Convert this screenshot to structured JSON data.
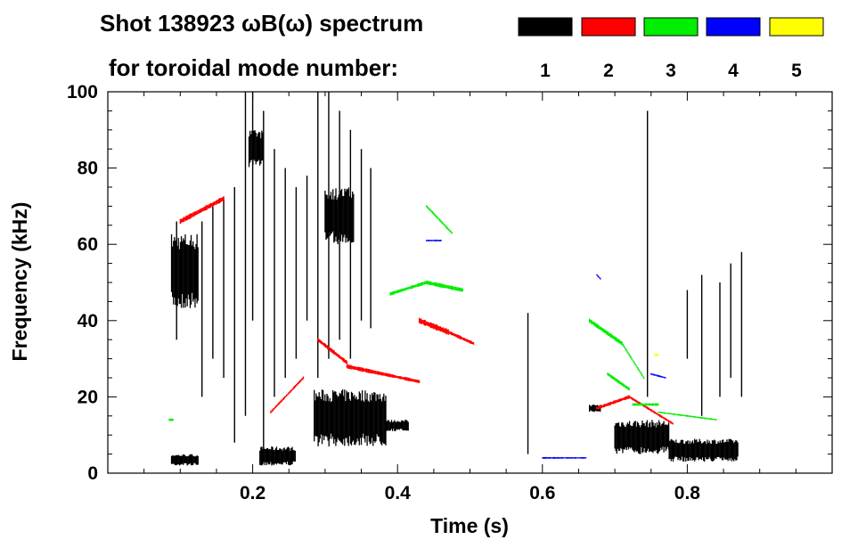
{
  "chart_data": {
    "type": "heatmap",
    "title_line1": "Shot 138923 ωB(ω) spectrum",
    "title_line2": "for toroidal mode number:",
    "xlabel": "Time (s)",
    "ylabel": "Frequency (kHz)",
    "xlim": [
      0.0,
      1.0
    ],
    "ylim": [
      0,
      100
    ],
    "xticks": [
      0.2,
      0.4,
      0.6,
      0.8
    ],
    "xtick_labels": [
      "0.2",
      "0.4",
      "0.6",
      "0.8"
    ],
    "yticks": [
      0,
      20,
      40,
      60,
      80,
      100
    ],
    "ytick_labels": [
      "0",
      "20",
      "40",
      "60",
      "80",
      "100"
    ],
    "legend": [
      {
        "n": "1",
        "color": "#000000"
      },
      {
        "n": "2",
        "color": "#ff0000"
      },
      {
        "n": "3",
        "color": "#00ee00"
      },
      {
        "n": "4",
        "color": "#0000ff"
      },
      {
        "n": "5",
        "color": "#ffff00"
      }
    ],
    "blobs": [
      {
        "n": 1,
        "t0": 0.088,
        "t1": 0.125,
        "f0": 43,
        "f1": 63
      },
      {
        "n": 1,
        "t0": 0.088,
        "t1": 0.125,
        "f0": 2,
        "f1": 5
      },
      {
        "n": 1,
        "t0": 0.195,
        "t1": 0.215,
        "f0": 80,
        "f1": 90
      },
      {
        "n": 1,
        "t0": 0.21,
        "t1": 0.26,
        "f0": 2,
        "f1": 7
      },
      {
        "n": 1,
        "t0": 0.285,
        "t1": 0.385,
        "f0": 7,
        "f1": 22
      },
      {
        "n": 1,
        "t0": 0.385,
        "t1": 0.415,
        "f0": 11,
        "f1": 14
      },
      {
        "n": 1,
        "t0": 0.3,
        "t1": 0.34,
        "f0": 60,
        "f1": 75
      },
      {
        "n": 1,
        "t0": 0.665,
        "t1": 0.68,
        "f0": 16,
        "f1": 18
      },
      {
        "n": 1,
        "t0": 0.7,
        "t1": 0.775,
        "f0": 5,
        "f1": 14
      },
      {
        "n": 1,
        "t0": 0.775,
        "t1": 0.87,
        "f0": 3,
        "f1": 9
      }
    ],
    "streaks": [
      {
        "n": 1,
        "t": 0.095,
        "f0": 35,
        "f1": 66
      },
      {
        "n": 1,
        "t": 0.13,
        "f0": 20,
        "f1": 66
      },
      {
        "n": 1,
        "t": 0.145,
        "f0": 30,
        "f1": 70
      },
      {
        "n": 1,
        "t": 0.16,
        "f0": 25,
        "f1": 72
      },
      {
        "n": 1,
        "t": 0.175,
        "f0": 8,
        "f1": 75
      },
      {
        "n": 1,
        "t": 0.19,
        "f0": 15,
        "f1": 100
      },
      {
        "n": 1,
        "t": 0.2,
        "f0": 40,
        "f1": 100
      },
      {
        "n": 1,
        "t": 0.215,
        "f0": 5,
        "f1": 95
      },
      {
        "n": 1,
        "t": 0.23,
        "f0": 20,
        "f1": 85
      },
      {
        "n": 1,
        "t": 0.245,
        "f0": 25,
        "f1": 80
      },
      {
        "n": 1,
        "t": 0.26,
        "f0": 30,
        "f1": 75
      },
      {
        "n": 1,
        "t": 0.275,
        "f0": 40,
        "f1": 78
      },
      {
        "n": 1,
        "t": 0.29,
        "f0": 25,
        "f1": 100
      },
      {
        "n": 1,
        "t": 0.305,
        "f0": 30,
        "f1": 100
      },
      {
        "n": 1,
        "t": 0.32,
        "f0": 35,
        "f1": 95
      },
      {
        "n": 1,
        "t": 0.335,
        "f0": 30,
        "f1": 90
      },
      {
        "n": 1,
        "t": 0.35,
        "f0": 40,
        "f1": 85
      },
      {
        "n": 1,
        "t": 0.363,
        "f0": 38,
        "f1": 80
      },
      {
        "n": 1,
        "t": 0.58,
        "f0": 5,
        "f1": 42
      },
      {
        "n": 1,
        "t": 0.745,
        "f0": 20,
        "f1": 95
      },
      {
        "n": 1,
        "t": 0.8,
        "f0": 30,
        "f1": 48
      },
      {
        "n": 1,
        "t": 0.82,
        "f0": 15,
        "f1": 52
      },
      {
        "n": 1,
        "t": 0.845,
        "f0": 20,
        "f1": 50
      },
      {
        "n": 1,
        "t": 0.86,
        "f0": 25,
        "f1": 55
      },
      {
        "n": 1,
        "t": 0.875,
        "f0": 20,
        "f1": 58
      }
    ],
    "tracks": [
      {
        "n": 2,
        "t0": 0.1,
        "f0": 66,
        "t1": 0.16,
        "f1": 72,
        "w": 6
      },
      {
        "n": 2,
        "t0": 0.29,
        "f0": 35,
        "t1": 0.33,
        "f1": 29,
        "w": 5
      },
      {
        "n": 2,
        "t0": 0.33,
        "f0": 28,
        "t1": 0.38,
        "f1": 26,
        "w": 5
      },
      {
        "n": 2,
        "t0": 0.38,
        "f0": 26,
        "t1": 0.43,
        "f1": 24,
        "w": 4
      },
      {
        "n": 2,
        "t0": 0.43,
        "f0": 40,
        "t1": 0.47,
        "f1": 37,
        "w": 7
      },
      {
        "n": 2,
        "t0": 0.47,
        "f0": 37,
        "t1": 0.505,
        "f1": 34,
        "w": 4
      },
      {
        "n": 2,
        "t0": 0.675,
        "f0": 17,
        "t1": 0.72,
        "f1": 20,
        "w": 4
      },
      {
        "n": 2,
        "t0": 0.72,
        "f0": 20,
        "t1": 0.78,
        "f1": 13,
        "w": 3
      },
      {
        "n": 2,
        "t0": 0.225,
        "f0": 16,
        "t1": 0.27,
        "f1": 25,
        "w": 3
      },
      {
        "n": 3,
        "t0": 0.39,
        "f0": 47,
        "t1": 0.44,
        "f1": 50,
        "w": 4
      },
      {
        "n": 3,
        "t0": 0.44,
        "f0": 50,
        "t1": 0.49,
        "f1": 48,
        "w": 5
      },
      {
        "n": 3,
        "t0": 0.44,
        "f0": 70,
        "t1": 0.475,
        "f1": 63,
        "w": 3
      },
      {
        "n": 3,
        "t0": 0.665,
        "f0": 40,
        "t1": 0.71,
        "f1": 34,
        "w": 5
      },
      {
        "n": 3,
        "t0": 0.71,
        "f0": 34,
        "t1": 0.74,
        "f1": 25,
        "w": 3
      },
      {
        "n": 3,
        "t0": 0.69,
        "f0": 26,
        "t1": 0.72,
        "f1": 22,
        "w": 4
      },
      {
        "n": 3,
        "t0": 0.725,
        "f0": 18,
        "t1": 0.76,
        "f1": 18,
        "w": 3
      },
      {
        "n": 3,
        "t0": 0.76,
        "f0": 16,
        "t1": 0.84,
        "f1": 14,
        "w": 2
      },
      {
        "n": 3,
        "t0": 0.085,
        "f0": 14,
        "t1": 0.09,
        "f1": 14,
        "w": 3
      },
      {
        "n": 4,
        "t0": 0.44,
        "f0": 61,
        "t1": 0.46,
        "f1": 61,
        "w": 2
      },
      {
        "n": 4,
        "t0": 0.675,
        "f0": 52,
        "t1": 0.68,
        "f1": 51,
        "w": 2
      },
      {
        "n": 4,
        "t0": 0.75,
        "f0": 26,
        "t1": 0.77,
        "f1": 25,
        "w": 2
      },
      {
        "n": 4,
        "t0": 0.6,
        "f0": 4,
        "t1": 0.66,
        "f1": 4,
        "w": 2
      },
      {
        "n": 5,
        "t0": 0.755,
        "f0": 31,
        "t1": 0.76,
        "f1": 31,
        "w": 3
      }
    ]
  }
}
